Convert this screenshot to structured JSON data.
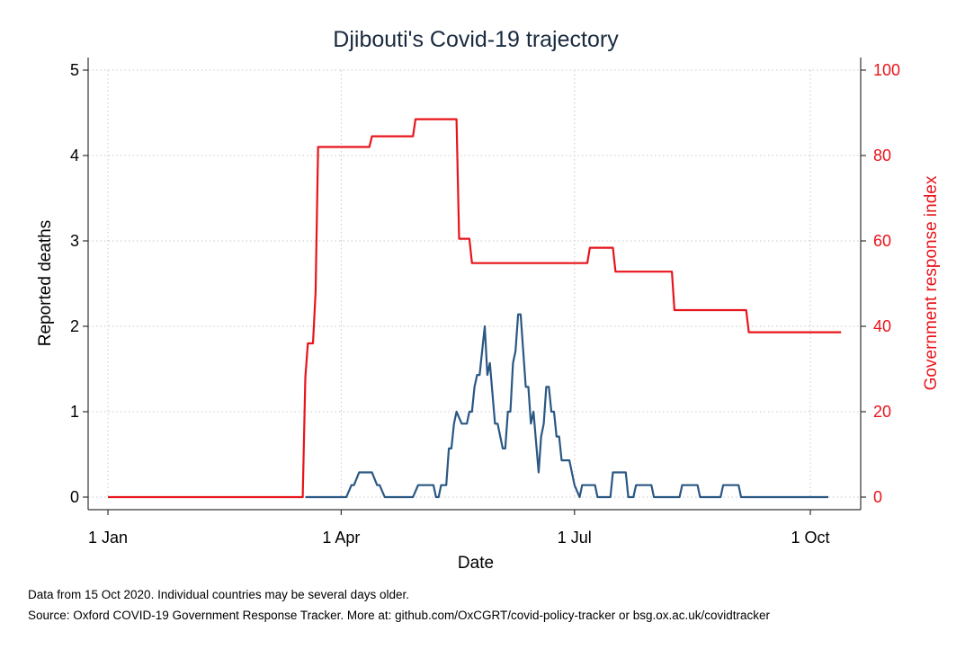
{
  "chart_data": {
    "type": "line",
    "title": "Djibouti's Covid-19 trajectory",
    "xlabel": "Date",
    "ylabel_left": "Reported deaths",
    "ylabel_right": "Government response index",
    "x_ticks": [
      "1 Jan",
      "1 Apr",
      "1 Jul",
      "1 Oct"
    ],
    "x_tick_dates": [
      "2020-01-01",
      "2020-04-01",
      "2020-07-01",
      "2020-10-01"
    ],
    "xlim": [
      "2020-01-01",
      "2020-10-15"
    ],
    "y_left_ticks": [
      "0",
      "1",
      "2",
      "3",
      "4",
      "5"
    ],
    "ylim_left": [
      0,
      5
    ],
    "y_right_ticks": [
      "0",
      "20",
      "40",
      "60",
      "80",
      "100"
    ],
    "ylim_right": [
      0,
      100
    ],
    "grid": true,
    "colors": {
      "deaths": "#2a5783",
      "response": "#e8141b",
      "title": "#1a2a3f"
    },
    "series": [
      {
        "axis": "left",
        "points": [
          [
            "2020-03-18",
            0
          ],
          [
            "2020-04-03",
            0
          ],
          [
            "2020-04-05",
            0.14
          ],
          [
            "2020-04-06",
            0.14
          ],
          [
            "2020-04-08",
            0.29
          ],
          [
            "2020-04-13",
            0.29
          ],
          [
            "2020-04-15",
            0.14
          ],
          [
            "2020-04-16",
            0.14
          ],
          [
            "2020-04-18",
            0
          ],
          [
            "2020-04-29",
            0
          ],
          [
            "2020-05-01",
            0.14
          ],
          [
            "2020-05-07",
            0.14
          ],
          [
            "2020-05-08",
            0
          ],
          [
            "2020-05-09",
            0
          ],
          [
            "2020-05-10",
            0.14
          ],
          [
            "2020-05-12",
            0.14
          ],
          [
            "2020-05-13",
            0.57
          ],
          [
            "2020-05-14",
            0.57
          ],
          [
            "2020-05-15",
            0.86
          ],
          [
            "2020-05-16",
            1.0
          ],
          [
            "2020-05-18",
            0.86
          ],
          [
            "2020-05-20",
            0.86
          ],
          [
            "2020-05-21",
            1.0
          ],
          [
            "2020-05-22",
            1.0
          ],
          [
            "2020-05-23",
            1.29
          ],
          [
            "2020-05-24",
            1.43
          ],
          [
            "2020-05-25",
            1.43
          ],
          [
            "2020-05-27",
            2.0
          ],
          [
            "2020-05-28",
            1.43
          ],
          [
            "2020-05-29",
            1.57
          ],
          [
            "2020-05-31",
            0.86
          ],
          [
            "2020-06-01",
            0.86
          ],
          [
            "2020-06-03",
            0.57
          ],
          [
            "2020-06-04",
            0.57
          ],
          [
            "2020-06-05",
            1.0
          ],
          [
            "2020-06-06",
            1.0
          ],
          [
            "2020-06-07",
            1.57
          ],
          [
            "2020-06-08",
            1.71
          ],
          [
            "2020-06-09",
            2.14
          ],
          [
            "2020-06-10",
            2.14
          ],
          [
            "2020-06-12",
            1.29
          ],
          [
            "2020-06-13",
            1.29
          ],
          [
            "2020-06-14",
            0.86
          ],
          [
            "2020-06-15",
            1.0
          ],
          [
            "2020-06-17",
            0.29
          ],
          [
            "2020-06-18",
            0.71
          ],
          [
            "2020-06-19",
            0.86
          ],
          [
            "2020-06-20",
            1.29
          ],
          [
            "2020-06-21",
            1.29
          ],
          [
            "2020-06-22",
            1.0
          ],
          [
            "2020-06-23",
            1.0
          ],
          [
            "2020-06-24",
            0.71
          ],
          [
            "2020-06-25",
            0.71
          ],
          [
            "2020-06-26",
            0.43
          ],
          [
            "2020-06-29",
            0.43
          ],
          [
            "2020-07-01",
            0.14
          ],
          [
            "2020-07-03",
            0
          ],
          [
            "2020-07-04",
            0.14
          ],
          [
            "2020-07-09",
            0.14
          ],
          [
            "2020-07-10",
            0
          ],
          [
            "2020-07-15",
            0
          ],
          [
            "2020-07-16",
            0.29
          ],
          [
            "2020-07-21",
            0.29
          ],
          [
            "2020-07-22",
            0
          ],
          [
            "2020-07-24",
            0
          ],
          [
            "2020-07-25",
            0.14
          ],
          [
            "2020-07-31",
            0.14
          ],
          [
            "2020-08-01",
            0
          ],
          [
            "2020-08-11",
            0
          ],
          [
            "2020-08-12",
            0.14
          ],
          [
            "2020-08-18",
            0.14
          ],
          [
            "2020-08-19",
            0
          ],
          [
            "2020-08-27",
            0
          ],
          [
            "2020-08-28",
            0.14
          ],
          [
            "2020-09-03",
            0.14
          ],
          [
            "2020-09-04",
            0
          ],
          [
            "2020-10-08",
            0
          ]
        ]
      },
      {
        "axis": "right",
        "points": [
          [
            "2020-01-01",
            0
          ],
          [
            "2020-03-17",
            0
          ],
          [
            "2020-03-18",
            28
          ],
          [
            "2020-03-19",
            36
          ],
          [
            "2020-03-21",
            36
          ],
          [
            "2020-03-22",
            48
          ],
          [
            "2020-03-23",
            82
          ],
          [
            "2020-04-12",
            82
          ],
          [
            "2020-04-13",
            84.5
          ],
          [
            "2020-04-29",
            84.5
          ],
          [
            "2020-04-30",
            88.5
          ],
          [
            "2020-05-16",
            88.5
          ],
          [
            "2020-05-17",
            60.5
          ],
          [
            "2020-05-21",
            60.5
          ],
          [
            "2020-05-22",
            54.8
          ],
          [
            "2020-07-06",
            54.8
          ],
          [
            "2020-07-07",
            58.4
          ],
          [
            "2020-07-16",
            58.4
          ],
          [
            "2020-07-17",
            52.8
          ],
          [
            "2020-08-08",
            52.8
          ],
          [
            "2020-08-09",
            43.8
          ],
          [
            "2020-09-06",
            43.8
          ],
          [
            "2020-09-07",
            38.6
          ],
          [
            "2020-10-13",
            38.6
          ]
        ]
      }
    ]
  },
  "footnotes": {
    "line1": "Data from 15 Oct 2020. Individual countries may be several days older.",
    "line2": "Source: Oxford COVID-19 Government Response Tracker. More at: github.com/OxCGRT/covid-policy-tracker or bsg.ox.ac.uk/covidtracker"
  }
}
